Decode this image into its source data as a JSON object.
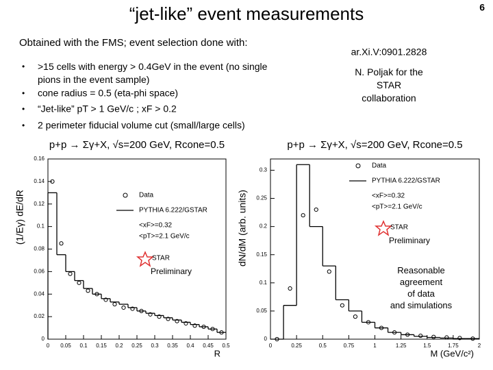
{
  "slide": {
    "title": "“jet-like” event measurements",
    "page_number": "6",
    "intro": "Obtained with the FMS; event selection done with:",
    "bullets": [
      ">15 cells with energy > 0.4GeV in the event (no single pions in the event sample)",
      "cone radius = 0.5 (eta-phi space)",
      "“Jet-like” pT > 1 GeV/c ; xF > 0.2",
      "2 perimeter fiducial volume cut (small/large cells)"
    ],
    "reference": "ar.Xi.V:0901.2828",
    "author": "N. Poljak for the STAR collaboration",
    "note": "Reasonable agreement of data and simulations"
  },
  "chart_data": [
    {
      "type": "histogram",
      "title": "p+p → Σγ+X, √s=200 GeV, Rcone=0.5",
      "x_label": "R",
      "y_label": "(1/Eγ) dE/dR",
      "bins": [
        0,
        0.025,
        0.05,
        0.075,
        0.1,
        0.125,
        0.15,
        0.175,
        0.2,
        0.225,
        0.25,
        0.275,
        0.3,
        0.325,
        0.35,
        0.375,
        0.4,
        0.425,
        0.45,
        0.475,
        0.5
      ],
      "series": [
        {
          "name": "Data",
          "style": "points",
          "color": "#000000",
          "values": [
            0.14,
            0.085,
            0.058,
            0.05,
            0.043,
            0.04,
            0.035,
            0.031,
            0.028,
            0.027,
            0.025,
            0.022,
            0.02,
            0.018,
            0.016,
            0.014,
            0.012,
            0.011,
            0.009,
            0.006
          ]
        },
        {
          "name": "PYTHIA 6.222/GSTAR",
          "style": "step",
          "color": "#000000",
          "values": [
            0.13,
            0.075,
            0.06,
            0.052,
            0.045,
            0.04,
            0.036,
            0.033,
            0.031,
            0.028,
            0.025,
            0.023,
            0.021,
            0.019,
            0.017,
            0.015,
            0.013,
            0.011,
            0.009,
            0.006
          ]
        }
      ],
      "legend_notes": [
        "<xF>=0.32",
        "<pT>=2.1 GeV/c"
      ],
      "annotations": [
        "STAR",
        "Preliminary"
      ],
      "xlim": [
        0,
        0.5
      ],
      "xticks": [
        0,
        0.05,
        0.1,
        0.15,
        0.2,
        0.25,
        0.3,
        0.35,
        0.4,
        0.45,
        0.5
      ],
      "ylim": [
        0,
        0.16
      ],
      "yticks": [
        0,
        0.02,
        0.04,
        0.06,
        0.08,
        0.1,
        0.12,
        0.14,
        0.16
      ]
    },
    {
      "type": "histogram",
      "title": "p+p → Σγ+X, √s=200 GeV, Rcone=0.5",
      "x_label": "M (GeV/c²)",
      "y_label": "dN/dM (arb. units)",
      "bins": [
        0,
        0.125,
        0.25,
        0.375,
        0.5,
        0.625,
        0.75,
        0.875,
        1,
        1.125,
        1.25,
        1.375,
        1.5,
        1.625,
        1.75,
        1.875,
        2
      ],
      "series": [
        {
          "name": "Data",
          "style": "points",
          "color": "#000000",
          "values": [
            0,
            0.09,
            0.22,
            0.23,
            0.12,
            0.06,
            0.04,
            0.03,
            0.02,
            0.012,
            0.008,
            0.006,
            0.004,
            0.003,
            0.002,
            0.001
          ]
        },
        {
          "name": "PYTHIA 6.222/GSTAR",
          "style": "step",
          "color": "#000000",
          "values": [
            0,
            0.06,
            0.31,
            0.2,
            0.13,
            0.07,
            0.05,
            0.03,
            0.02,
            0.012,
            0.008,
            0.005,
            0.003,
            0.002,
            0.001,
            0.001
          ]
        }
      ],
      "legend_notes": [
        "<xF>=0.32",
        "<pT>=2.1 GeV/c"
      ],
      "annotations": [
        "STAR",
        "Preliminary"
      ],
      "xlim": [
        0,
        2
      ],
      "xticks": [
        0,
        0.25,
        0.5,
        0.75,
        1,
        1.25,
        1.5,
        1.75,
        2
      ],
      "ylim": [
        0,
        0.32
      ],
      "yticks": [
        0,
        0.05,
        0.1,
        0.15,
        0.2,
        0.25,
        0.3
      ]
    }
  ]
}
